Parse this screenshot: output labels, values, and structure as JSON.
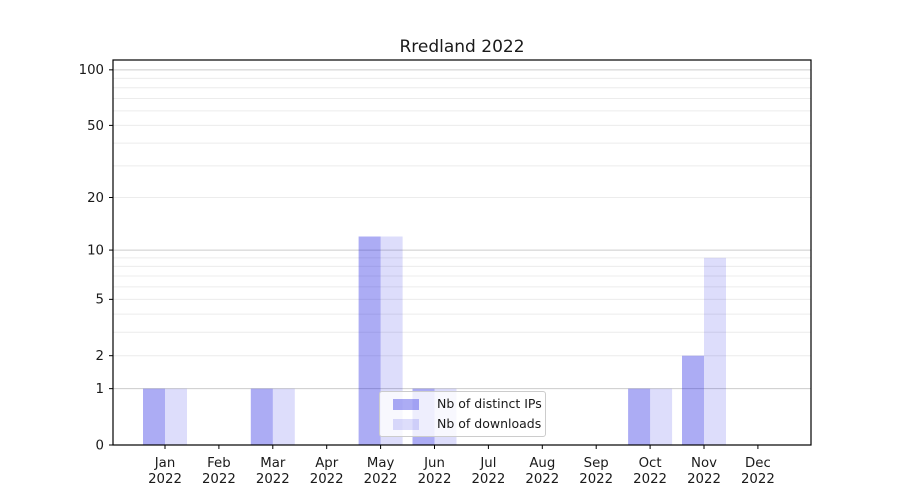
{
  "chart_data": {
    "type": "bar",
    "title": "Rredland 2022",
    "categories": [
      "Jan 2022",
      "Feb 2022",
      "Mar 2022",
      "Apr 2022",
      "May 2022",
      "Jun 2022",
      "Jul 2022",
      "Aug 2022",
      "Sep 2022",
      "Oct 2022",
      "Nov 2022",
      "Dec 2022"
    ],
    "series": [
      {
        "key": "distinct-ips",
        "name": "Nb of distinct IPs",
        "color": "rgba(30,30,225,0.37)",
        "values": [
          1,
          0,
          1,
          0,
          12,
          1,
          0,
          0,
          0,
          1,
          2,
          0
        ]
      },
      {
        "key": "downloads",
        "name": "Nb of downloads",
        "color": "rgba(30,30,225,0.15)",
        "values": [
          1,
          0,
          1,
          0,
          12,
          1,
          0,
          0,
          0,
          1,
          9,
          0
        ]
      }
    ],
    "yscale": "log1p",
    "ylim": [
      0,
      113
    ],
    "yticks": [
      0,
      1,
      2,
      5,
      10,
      20,
      50,
      100
    ],
    "grid": {
      "major": [
        1,
        10,
        100
      ],
      "minor": [
        2,
        3,
        4,
        5,
        6,
        7,
        8,
        9,
        20,
        30,
        40,
        50,
        60,
        70,
        80,
        90
      ],
      "major_color": "#cccccc",
      "minor_color": "#ececec"
    },
    "legend": {
      "position": "lower center"
    },
    "xlabel": "",
    "ylabel": ""
  }
}
